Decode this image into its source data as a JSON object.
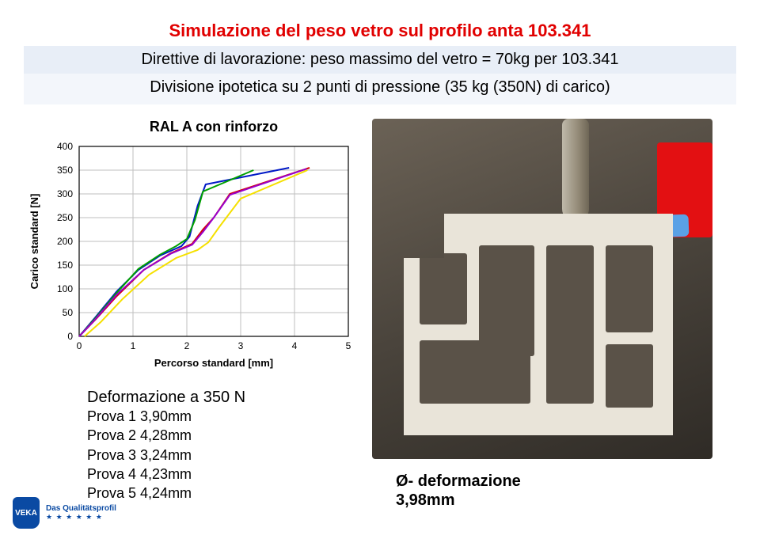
{
  "header": {
    "title": "Simulazione del peso vetro sul profilo anta 103.341",
    "subtitle1": "Direttive di lavorazione: peso massimo del vetro = 70kg per 103.341",
    "subtitle2": "Divisione ipotetica su 2 punti di pressione  (35 kg (350N) di carico)"
  },
  "chart": {
    "type": "line",
    "title": "RAL A con rinforzo",
    "xlabel": "Percorso standard [mm]",
    "ylabel": "Carico standard [N]",
    "xlim": [
      0,
      5
    ],
    "ylim": [
      0,
      400
    ],
    "xtick_step": 1,
    "ytick_step": 50,
    "label_fontsize": 13,
    "tick_fontsize": 12,
    "grid_color": "#bfbfbf",
    "axis_color": "#000000",
    "background_color": "#ffffff",
    "line_width": 2,
    "series": [
      {
        "name": "Prova 1",
        "color": "#0018c6",
        "x": [
          0,
          0.3,
          0.7,
          1.1,
          1.5,
          1.9,
          2.05,
          2.2,
          2.35,
          3.9
        ],
        "y": [
          0,
          40,
          95,
          140,
          170,
          190,
          210,
          275,
          320,
          355
        ]
      },
      {
        "name": "Prova 2",
        "color": "#d40000",
        "x": [
          0,
          0.3,
          0.7,
          1.2,
          1.7,
          2.1,
          2.3,
          2.5,
          2.8,
          4.28
        ],
        "y": [
          0,
          35,
          85,
          140,
          175,
          195,
          225,
          250,
          300,
          355
        ]
      },
      {
        "name": "Prova 3",
        "color": "#00a000",
        "x": [
          0,
          0.3,
          0.7,
          1.1,
          1.5,
          1.8,
          2.0,
          2.15,
          2.3,
          3.24
        ],
        "y": [
          0,
          38,
          92,
          142,
          172,
          190,
          205,
          245,
          305,
          350
        ]
      },
      {
        "name": "Prova 4",
        "color": "#9900cc",
        "x": [
          0,
          0.3,
          0.7,
          1.2,
          1.7,
          2.1,
          2.3,
          2.5,
          2.8,
          4.23
        ],
        "y": [
          0,
          36,
          88,
          140,
          174,
          193,
          220,
          250,
          298,
          353
        ]
      },
      {
        "name": "Prova 5",
        "color": "#f5e000",
        "x": [
          0.1,
          0.4,
          0.8,
          1.3,
          1.8,
          2.2,
          2.4,
          2.6,
          3.0,
          4.24
        ],
        "y": [
          0,
          30,
          78,
          130,
          165,
          182,
          198,
          230,
          290,
          350
        ]
      }
    ]
  },
  "deformation": {
    "title": "Deformazione a 350 N",
    "rows": [
      {
        "label": "Prova 1",
        "value": "3,90mm"
      },
      {
        "label": "Prova 2",
        "value": "4,28mm"
      },
      {
        "label": "Prova 3",
        "value": "3,24mm"
      },
      {
        "label": "Prova 4",
        "value": "4,23mm"
      },
      {
        "label": "Prova 5",
        "value": "4,24mm"
      }
    ]
  },
  "result": {
    "label": "Ø- deformazione",
    "value": "3,98mm"
  },
  "logo": {
    "badge": "VEKA",
    "tagline": "Das Qualitätsprofil"
  }
}
